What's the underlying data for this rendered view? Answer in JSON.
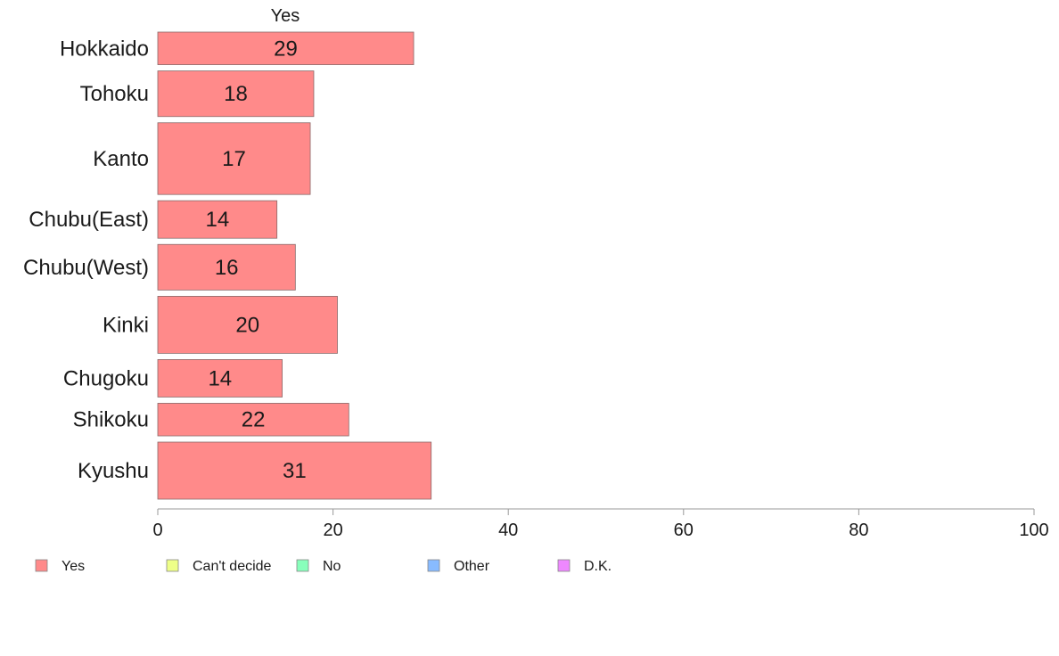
{
  "chart_data": {
    "type": "bar",
    "orientation": "horizontal",
    "stacked": true,
    "series_header": "Yes",
    "categories": [
      "Hokkaido",
      "Tohoku",
      "Kanto",
      "Chubu(East)",
      "Chubu(West)",
      "Kinki",
      "Chugoku",
      "Shikoku",
      "Kyushu"
    ],
    "series": [
      {
        "name": "Yes",
        "color": "#ff8a8a",
        "values": [
          29.2,
          17.8,
          17.4,
          13.6,
          15.7,
          20.5,
          14.2,
          21.8,
          31.2
        ],
        "labels": [
          "29",
          "18",
          "17",
          "14",
          "16",
          "20",
          "14",
          "22",
          "31"
        ]
      }
    ],
    "relative_weights": [
      1.0,
      1.4,
      2.2,
      1.15,
      1.4,
      1.75,
      1.15,
      1.0,
      1.75
    ],
    "xlim": [
      0,
      100
    ],
    "xticks": [
      "0",
      "20",
      "40",
      "60",
      "80",
      "100"
    ],
    "grid": false,
    "legend": {
      "placement": "bottom-left",
      "items": [
        {
          "label": "Yes",
          "color": "#ff8a8a"
        },
        {
          "label": "Can't decide",
          "color": "#eeff88"
        },
        {
          "label": "No",
          "color": "#88ffbb"
        },
        {
          "label": "Other",
          "color": "#88bbff"
        },
        {
          "label": "D.K.",
          "color": "#ee88ff"
        }
      ]
    },
    "bar_stroke": "#8a6a6a",
    "axis_color": "#999999"
  }
}
